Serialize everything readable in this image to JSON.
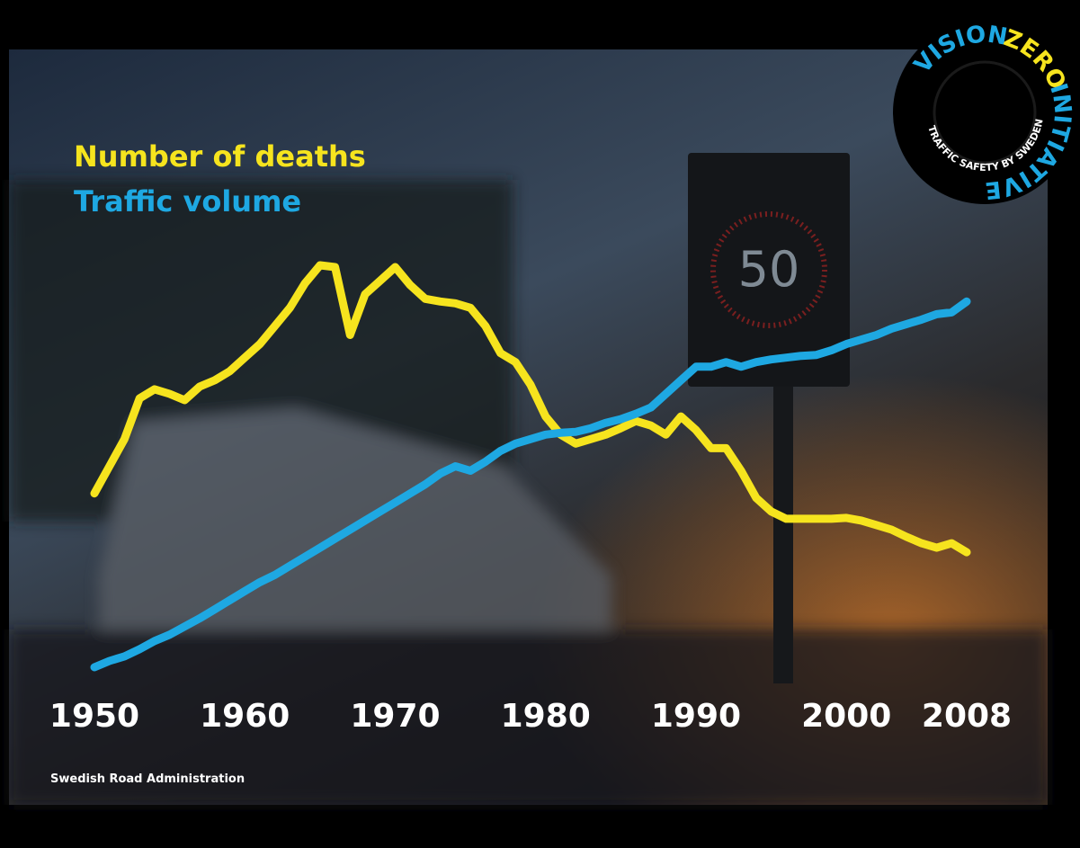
{
  "chart_data": {
    "type": "line",
    "x": [
      1950,
      1951,
      1952,
      1953,
      1954,
      1955,
      1956,
      1957,
      1958,
      1959,
      1960,
      1961,
      1962,
      1963,
      1964,
      1965,
      1966,
      1967,
      1968,
      1969,
      1970,
      1971,
      1972,
      1973,
      1974,
      1975,
      1976,
      1977,
      1978,
      1979,
      1980,
      1981,
      1982,
      1983,
      1984,
      1985,
      1986,
      1987,
      1988,
      1989,
      1990,
      1991,
      1992,
      1993,
      1994,
      1995,
      1996,
      1997,
      1998,
      1999,
      2000,
      2001,
      2002,
      2003,
      2004,
      2005,
      2006,
      2007,
      2008
    ],
    "xlim": [
      1950,
      2008
    ],
    "xticks": [
      1950,
      1960,
      1970,
      1980,
      1990,
      2000,
      2008
    ],
    "series": [
      {
        "name": "Number of deaths",
        "color": "#f6e41e",
        "values": [
          210,
          240,
          270,
          315,
          325,
          320,
          313,
          328,
          335,
          345,
          360,
          375,
          395,
          415,
          442,
          462,
          460,
          385,
          430,
          445,
          460,
          440,
          425,
          422,
          420,
          415,
          395,
          365,
          355,
          330,
          295,
          275,
          265,
          270,
          275,
          282,
          290,
          285,
          275,
          295,
          280,
          260,
          260,
          235,
          205,
          190,
          182,
          182,
          182,
          182,
          183,
          180,
          175,
          170,
          162,
          155,
          150,
          155,
          145
        ]
      },
      {
        "name": "Traffic volume",
        "color": "#1ea8e2",
        "values": [
          18,
          25,
          30,
          38,
          47,
          54,
          63,
          72,
          82,
          92,
          102,
          112,
          120,
          130,
          140,
          150,
          160,
          170,
          180,
          190,
          200,
          210,
          220,
          232,
          240,
          235,
          245,
          257,
          265,
          270,
          275,
          277,
          278,
          282,
          288,
          292,
          298,
          305,
          320,
          335,
          350,
          350,
          355,
          350,
          355,
          358,
          360,
          362,
          363,
          368,
          375,
          380,
          385,
          392,
          397,
          402,
          408,
          410,
          422
        ]
      }
    ],
    "source": "Swedish Road Administration"
  },
  "logo": {
    "words": [
      "VISION",
      "ZERO",
      "INITIATIVE"
    ],
    "tagline": "TRAFFIC SAFETY BY SWEDEN"
  },
  "background": {
    "sign": "50"
  }
}
